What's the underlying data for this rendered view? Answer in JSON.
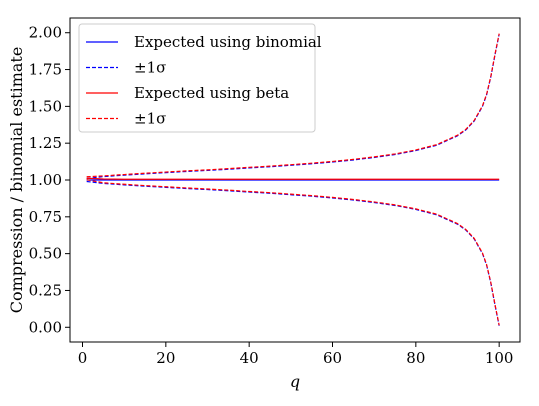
{
  "chart_data": {
    "type": "line",
    "title": "",
    "xlabel": "q",
    "ylabel": "Compression / binomial estimate",
    "xlim": [
      -3,
      105
    ],
    "ylim": [
      -0.1,
      2.1
    ],
    "x_ticks": [
      0,
      20,
      40,
      60,
      80,
      100
    ],
    "x_tick_labels": [
      "0",
      "20",
      "40",
      "60",
      "80",
      "100"
    ],
    "y_ticks": [
      0.0,
      0.25,
      0.5,
      0.75,
      1.0,
      1.25,
      1.5,
      1.75,
      2.0
    ],
    "y_tick_labels": [
      "0.00",
      "0.25",
      "0.50",
      "0.75",
      "1.00",
      "1.25",
      "1.50",
      "1.75",
      "2.00"
    ],
    "grid": false,
    "legend_position": "top-left",
    "x": [
      1,
      5,
      10,
      15,
      20,
      25,
      30,
      35,
      40,
      45,
      50,
      55,
      60,
      65,
      70,
      75,
      80,
      85,
      90,
      92,
      94,
      95,
      96,
      97,
      98,
      99,
      100
    ],
    "series": [
      {
        "name": "Expected using binomial",
        "color": "#0000ff",
        "style": "solid",
        "values": [
          1.0,
          1.0,
          1.0,
          1.0,
          1.0,
          1.0,
          1.0,
          1.0,
          1.0,
          1.0,
          1.0,
          1.0,
          1.0,
          1.0,
          1.0,
          1.0,
          1.0,
          1.0,
          1.0,
          1.0,
          1.0,
          1.0,
          1.0,
          1.0,
          1.0,
          1.0,
          1.0
        ]
      },
      {
        "name": "±1σ",
        "color": "#0000ff",
        "style": "dashed",
        "values": [
          1.01,
          1.023,
          1.033,
          1.042,
          1.05,
          1.058,
          1.065,
          1.073,
          1.082,
          1.09,
          1.1,
          1.11,
          1.122,
          1.136,
          1.153,
          1.173,
          1.2,
          1.236,
          1.3,
          1.34,
          1.4,
          1.45,
          1.5,
          1.58,
          1.7,
          1.85,
          1.99
        ]
      },
      {
        "name": "±1σ",
        "color": "#0000ff",
        "style": "dashed",
        "values": [
          0.99,
          0.977,
          0.967,
          0.958,
          0.95,
          0.942,
          0.935,
          0.927,
          0.918,
          0.91,
          0.9,
          0.89,
          0.878,
          0.864,
          0.847,
          0.827,
          0.8,
          0.764,
          0.7,
          0.66,
          0.6,
          0.55,
          0.5,
          0.42,
          0.3,
          0.15,
          0.01
        ]
      },
      {
        "name": "Expected using beta",
        "color": "#ff0000",
        "style": "solid",
        "values": [
          1.012,
          1.007,
          1.005,
          1.005,
          1.005,
          1.005,
          1.005,
          1.005,
          1.005,
          1.005,
          1.005,
          1.005,
          1.005,
          1.005,
          1.005,
          1.005,
          1.005,
          1.005,
          1.005,
          1.005,
          1.005,
          1.005,
          1.005,
          1.005,
          1.005,
          1.005,
          1.005
        ]
      },
      {
        "name": "±1σ",
        "color": "#ff0000",
        "style": "dashed",
        "values": [
          1.022,
          1.028,
          1.037,
          1.046,
          1.054,
          1.062,
          1.069,
          1.077,
          1.086,
          1.094,
          1.104,
          1.114,
          1.126,
          1.14,
          1.157,
          1.177,
          1.204,
          1.24,
          1.304,
          1.344,
          1.404,
          1.454,
          1.504,
          1.584,
          1.704,
          1.854,
          1.994
        ]
      },
      {
        "name": "±1σ",
        "color": "#ff0000",
        "style": "dashed",
        "values": [
          1.002,
          0.981,
          0.971,
          0.962,
          0.954,
          0.946,
          0.939,
          0.931,
          0.922,
          0.914,
          0.904,
          0.894,
          0.882,
          0.868,
          0.851,
          0.831,
          0.804,
          0.768,
          0.704,
          0.664,
          0.604,
          0.554,
          0.504,
          0.424,
          0.304,
          0.154,
          0.014
        ]
      }
    ],
    "legend": [
      {
        "label": "Expected using binomial",
        "color": "#0000ff",
        "style": "solid"
      },
      {
        "label": "±1σ",
        "color": "#0000ff",
        "style": "dashed"
      },
      {
        "label": "Expected using beta",
        "color": "#ff0000",
        "style": "solid"
      },
      {
        "label": "±1σ",
        "color": "#ff0000",
        "style": "dashed"
      }
    ]
  }
}
